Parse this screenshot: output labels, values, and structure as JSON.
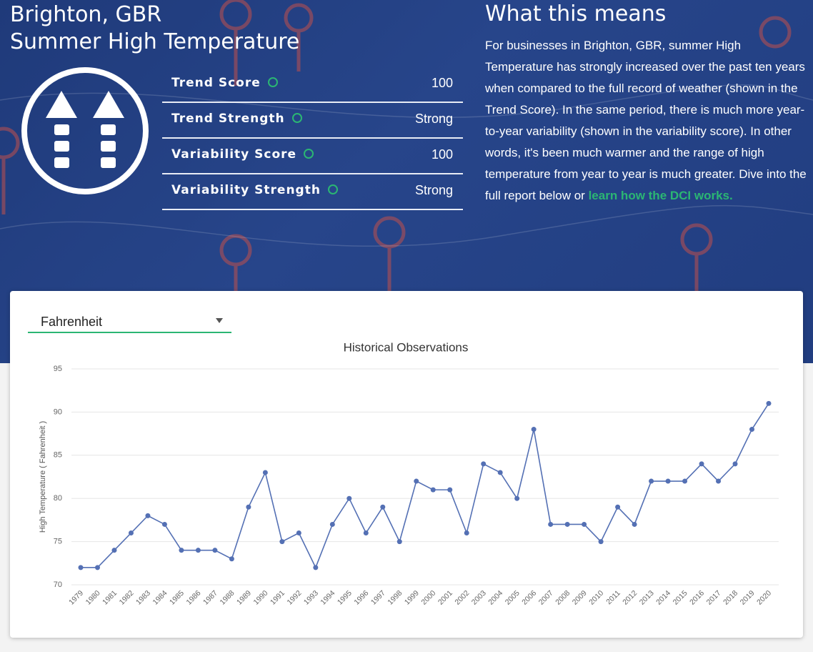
{
  "header": {
    "location": "Brighton, GBR",
    "title": "Summer High Temperature"
  },
  "metrics": [
    {
      "label": "Trend Score",
      "value": 100
    },
    {
      "label": "Trend Strength",
      "value": "Strong"
    },
    {
      "label": "Variability Score",
      "value": 100
    },
    {
      "label": "Variability Strength",
      "value": "Strong"
    }
  ],
  "description": {
    "heading": "What this means",
    "text": "For businesses in Brighton, GBR, summer High Temperature has strongly increased over the past ten years when compared to the full record of weather (shown in the Trend Score). In the same period, there is much more year-to-year variability (shown in the variability score). In other words, it's been much warmer and the range of high temperature from year to year is much greater. Dive into the full report below or",
    "link": "learn how the DCI works."
  },
  "unit_select": "Fahrenheit",
  "chart_data": {
    "type": "line",
    "title": "Historical Observations",
    "y_label": "High Temperature ( Fahrenheit )",
    "categories": [
      "1979",
      "1980",
      "1981",
      "1982",
      "1983",
      "1984",
      "1985",
      "1986",
      "1987",
      "1988",
      "1989",
      "1990",
      "1991",
      "1992",
      "1993",
      "1994",
      "1995",
      "1996",
      "1997",
      "1998",
      "1999",
      "2000",
      "2001",
      "2002",
      "2003",
      "2004",
      "2005",
      "2006",
      "2007",
      "2008",
      "2009",
      "2010",
      "2011",
      "2012",
      "2013",
      "2014",
      "2015",
      "2016",
      "2017",
      "2018",
      "2019",
      "2020"
    ],
    "values": [
      72,
      72,
      74,
      76,
      78,
      77,
      74,
      74,
      74,
      73,
      79,
      83,
      75,
      76,
      72,
      77,
      80,
      76,
      79,
      75,
      82,
      81,
      81,
      76,
      84,
      83,
      80,
      88,
      77,
      77,
      77,
      75,
      79,
      77,
      82,
      82,
      82,
      84,
      82,
      84,
      88,
      91
    ],
    "color": "#5470b4",
    "ylim": [
      70,
      95
    ],
    "yticks": [
      70,
      75,
      80,
      85,
      90,
      95
    ],
    "grid": true
  }
}
